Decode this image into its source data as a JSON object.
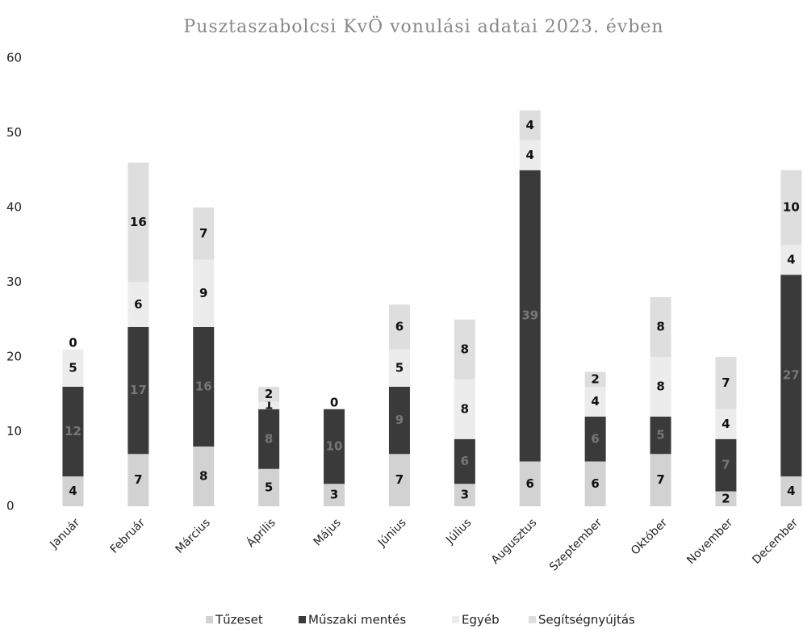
{
  "chart_data": {
    "type": "stacked_bar",
    "title": "Pusztaszabolcsi KvÖ vonulási adatai 2023. évben",
    "categories": [
      "Január",
      "Február",
      "Március",
      "Április",
      "Május",
      "Június",
      "Július",
      "Augusztus",
      "Szeptember",
      "Október",
      "November",
      "December"
    ],
    "series": [
      {
        "name": "Tűzeset",
        "color": "#d2d2d2",
        "values": [
          4,
          7,
          8,
          5,
          3,
          7,
          3,
          6,
          6,
          7,
          2,
          4
        ]
      },
      {
        "name": "Műszaki mentés",
        "color": "#3a3a3a",
        "values": [
          12,
          17,
          16,
          8,
          10,
          9,
          6,
          39,
          6,
          5,
          7,
          27
        ]
      },
      {
        "name": "Egyéb",
        "color": "#ececec",
        "values": [
          5,
          6,
          9,
          1,
          0,
          5,
          8,
          4,
          4,
          8,
          4,
          4
        ]
      },
      {
        "name": "Segítségnyújtás",
        "color": "#dedede",
        "values": [
          0,
          16,
          7,
          2,
          null,
          6,
          8,
          4,
          2,
          8,
          7,
          10
        ]
      }
    ],
    "ylim": [
      0,
      60
    ],
    "yticks": [
      0,
      10,
      20,
      30,
      40,
      50,
      60
    ],
    "grid": false,
    "legend": "bottom"
  }
}
